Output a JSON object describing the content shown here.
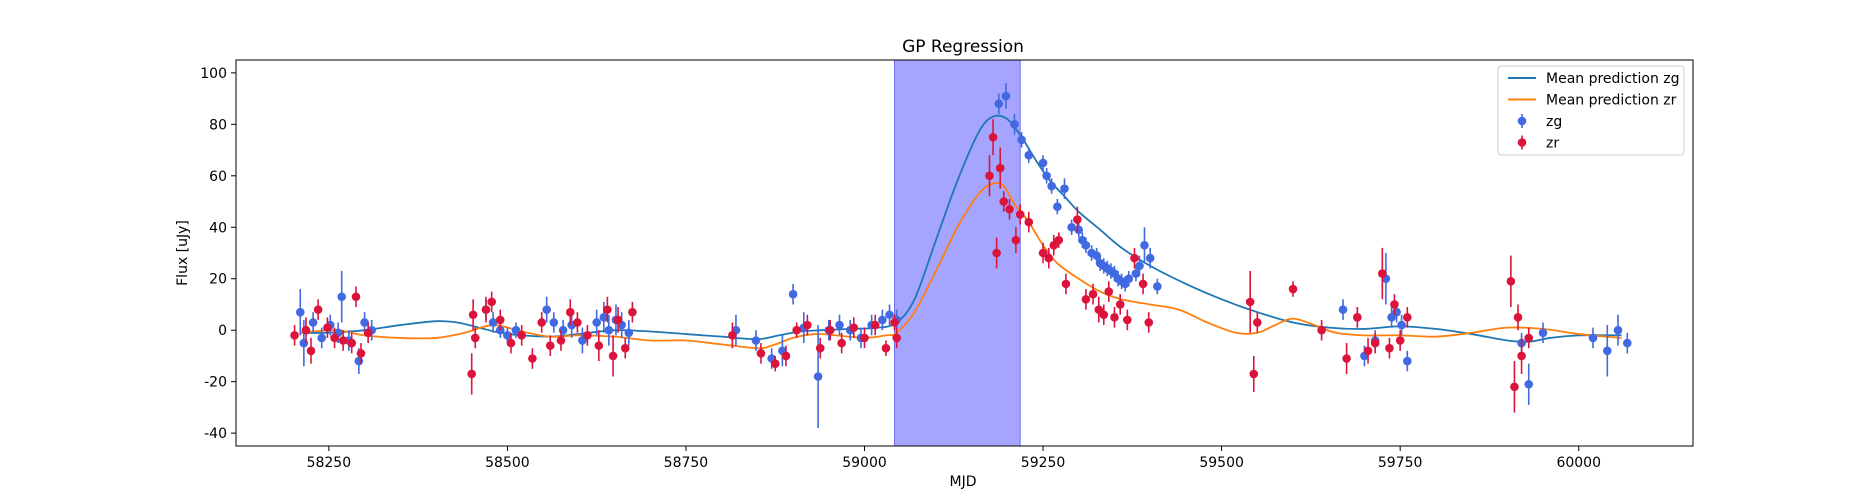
{
  "chart_data": {
    "type": "scatter",
    "title": "GP Regression",
    "xlabel": "MJD",
    "ylabel": "Flux [uJy]",
    "xlim": [
      58120,
      60160
    ],
    "ylim": [
      -45,
      105
    ],
    "xticks": [
      58250,
      58500,
      58750,
      59000,
      59250,
      59500,
      59750,
      60000
    ],
    "yticks": [
      -40,
      -20,
      0,
      20,
      40,
      60,
      80,
      100
    ],
    "grid": false,
    "legend_position": "top-right",
    "shaded_region": {
      "x": [
        59042,
        59218
      ],
      "color": "#a5a5ff"
    },
    "series": [
      {
        "name": "Mean prediction zg",
        "kind": "line",
        "color": "#1f77b4",
        "x": [
          58210,
          58250,
          58300,
          58350,
          58400,
          58430,
          58460,
          58490,
          58520,
          58560,
          58600,
          58650,
          58700,
          58750,
          58800,
          58850,
          58880,
          58910,
          58940,
          58980,
          59020,
          59045,
          59070,
          59100,
          59130,
          59160,
          59180,
          59200,
          59220,
          59240,
          59260,
          59280,
          59300,
          59330,
          59360,
          59400,
          59450,
          59500,
          59550,
          59600,
          59650,
          59700,
          59750,
          59800,
          59850,
          59900,
          59930,
          59960,
          60000,
          60060
        ],
        "y": [
          -1,
          -1,
          0,
          2,
          3.5,
          3,
          1,
          -1,
          -2,
          -2.5,
          -1.5,
          0,
          -0.5,
          -1.5,
          -2.5,
          -3.5,
          -2,
          -0.5,
          0,
          0.5,
          1,
          3,
          12,
          35,
          58,
          77,
          83,
          82,
          75,
          66,
          58,
          52,
          46,
          39,
          32,
          25,
          18,
          12,
          7,
          3,
          1,
          0.5,
          1.5,
          0.5,
          -1.5,
          -4,
          -4.5,
          -3,
          -2,
          -2
        ]
      },
      {
        "name": "Mean prediction zr",
        "kind": "line",
        "color": "#ff7f0e",
        "x": [
          58210,
          58260,
          58300,
          58350,
          58400,
          58440,
          58480,
          58520,
          58560,
          58600,
          58650,
          58700,
          58750,
          58800,
          58850,
          58870,
          58900,
          58930,
          58960,
          59000,
          59030,
          59045,
          59070,
          59100,
          59130,
          59160,
          59180,
          59195,
          59210,
          59230,
          59250,
          59270,
          59300,
          59330,
          59360,
          59400,
          59440,
          59480,
          59520,
          59550,
          59575,
          59600,
          59630,
          59660,
          59700,
          59750,
          59800,
          59850,
          59900,
          59950,
          60000,
          60060
        ],
        "y": [
          -1,
          0,
          -2,
          -3,
          -3,
          -1,
          2,
          -0.5,
          -2.5,
          -2,
          -2.5,
          -4,
          -4,
          -5.5,
          -7,
          -6,
          -3,
          -1.5,
          -2,
          -3,
          -2,
          -1,
          7,
          23,
          40,
          53,
          57,
          56,
          49,
          42,
          33,
          26,
          20,
          15,
          12,
          10,
          8,
          3,
          -1,
          -1,
          2,
          4.5,
          2,
          -1,
          -2,
          -2,
          -2.5,
          -1,
          1,
          0.5,
          -1.5,
          -3
        ]
      },
      {
        "name": "zg",
        "kind": "errorbar",
        "color": "#4169e1",
        "x": [
          58210,
          58215,
          58228,
          58240,
          58252,
          58263,
          58268,
          58278,
          58292,
          58300,
          58310,
          58470,
          58480,
          58490,
          58500,
          58512,
          58555,
          58565,
          58578,
          58590,
          58605,
          58625,
          58635,
          58642,
          58652,
          58660,
          58670,
          58820,
          58848,
          58870,
          58885,
          58900,
          58915,
          58935,
          58950,
          58965,
          58980,
          58995,
          59010,
          59025,
          59035,
          59045,
          59188,
          59198,
          59210,
          59220,
          59230,
          59250,
          59255,
          59262,
          59270,
          59280,
          59290,
          59300,
          59305,
          59310,
          59318,
          59325,
          59330,
          59335,
          59340,
          59345,
          59350,
          59355,
          59360,
          59365,
          59370,
          59380,
          59385,
          59392,
          59400,
          59410,
          59670,
          59690,
          59700,
          59715,
          59730,
          59738,
          59745,
          59752,
          59760,
          59920,
          59930,
          59950,
          60020,
          60040,
          60055,
          60068
        ],
        "y": [
          7,
          -5,
          3,
          -3,
          2,
          -1,
          13,
          -4,
          -12,
          3,
          0,
          8,
          3,
          0,
          -2,
          0,
          8,
          3,
          0,
          2,
          -4,
          3,
          5,
          0,
          4,
          2,
          -1,
          0,
          -4,
          -11,
          -8,
          14,
          1,
          -18,
          0,
          2,
          0,
          -3,
          2,
          4,
          6,
          4,
          88,
          91,
          80,
          74,
          68,
          65,
          60,
          56,
          48,
          55,
          40,
          39,
          35,
          33,
          30,
          29,
          26,
          25,
          24,
          23,
          22,
          20,
          19,
          18,
          20,
          22,
          25,
          33,
          28,
          17,
          8,
          5,
          -10,
          -4,
          20,
          5,
          7,
          2,
          -12,
          -5,
          -21,
          -1,
          -3,
          -8,
          0,
          -5
        ],
        "yerr": [
          9,
          9,
          4,
          4,
          4,
          4,
          10,
          4,
          5,
          4,
          4,
          4,
          4,
          3,
          3,
          3,
          5,
          4,
          4,
          5,
          5,
          5,
          6,
          6,
          6,
          5,
          5,
          6,
          4,
          4,
          6,
          4,
          6,
          20,
          4,
          4,
          4,
          4,
          4,
          4,
          4,
          4,
          4,
          5,
          4,
          3,
          3,
          3,
          3,
          3,
          3,
          4,
          3,
          3,
          3,
          3,
          3,
          3,
          3,
          3,
          3,
          3,
          3,
          3,
          3,
          3,
          3,
          3,
          4,
          7,
          4,
          3,
          4,
          4,
          4,
          4,
          10,
          4,
          4,
          4,
          4,
          4,
          8,
          4,
          4,
          10,
          6,
          4
        ]
      },
      {
        "name": "zr",
        "kind": "errorbar",
        "color": "#dc143c",
        "x": [
          58202,
          58218,
          58225,
          58235,
          58248,
          58258,
          58270,
          58282,
          58288,
          58295,
          58305,
          58450,
          58452,
          58455,
          58470,
          58478,
          58490,
          58505,
          58520,
          58535,
          58548,
          58560,
          58575,
          58588,
          58598,
          58612,
          58628,
          58640,
          58648,
          58655,
          58665,
          58675,
          58815,
          58855,
          58875,
          58890,
          58905,
          58920,
          58938,
          58952,
          58968,
          58985,
          59000,
          59015,
          59030,
          59042,
          59045,
          59175,
          59180,
          59185,
          59190,
          59195,
          59203,
          59212,
          59218,
          59230,
          59250,
          59258,
          59265,
          59272,
          59282,
          59298,
          59310,
          59320,
          59328,
          59335,
          59342,
          59350,
          59358,
          59368,
          59378,
          59390,
          59398,
          59540,
          59545,
          59550,
          59600,
          59640,
          59675,
          59690,
          59705,
          59715,
          59725,
          59735,
          59742,
          59750,
          59760,
          59905,
          59910,
          59915,
          59920,
          59930
        ],
        "y": [
          -2,
          0,
          -8,
          8,
          1,
          -3,
          -4,
          -5,
          13,
          -9,
          -1,
          -17,
          6,
          -3,
          8,
          11,
          4,
          -5,
          -2,
          -11,
          3,
          -6,
          -4,
          7,
          3,
          -2,
          -6,
          8,
          -10,
          4,
          -7,
          7,
          -2,
          -9,
          -13,
          -10,
          0,
          2,
          -7,
          0,
          -5,
          1,
          -3,
          2,
          -7,
          3,
          -3,
          60,
          75,
          30,
          63,
          50,
          47,
          35,
          45,
          42,
          30,
          28,
          33,
          35,
          18,
          43,
          12,
          14,
          8,
          6,
          15,
          5,
          10,
          4,
          28,
          18,
          3,
          11,
          -17,
          3,
          16,
          0,
          -11,
          5,
          -8,
          -5,
          22,
          -7,
          10,
          -4,
          5,
          19,
          -22,
          5,
          -10,
          -3
        ],
        "yerr": [
          4,
          5,
          5,
          4,
          4,
          4,
          4,
          4,
          4,
          4,
          4,
          8,
          6,
          4,
          5,
          4,
          4,
          4,
          4,
          4,
          4,
          4,
          4,
          5,
          4,
          4,
          6,
          5,
          8,
          5,
          4,
          4,
          5,
          4,
          3,
          4,
          3,
          4,
          4,
          4,
          4,
          4,
          4,
          4,
          3,
          3,
          4,
          8,
          7,
          6,
          8,
          4,
          4,
          5,
          4,
          4,
          4,
          4,
          4,
          3,
          4,
          5,
          4,
          4,
          5,
          4,
          4,
          4,
          4,
          4,
          4,
          4,
          4,
          12,
          7,
          4,
          3,
          4,
          6,
          4,
          5,
          4,
          10,
          4,
          4,
          4,
          4,
          10,
          10,
          5,
          7,
          4
        ]
      }
    ]
  }
}
